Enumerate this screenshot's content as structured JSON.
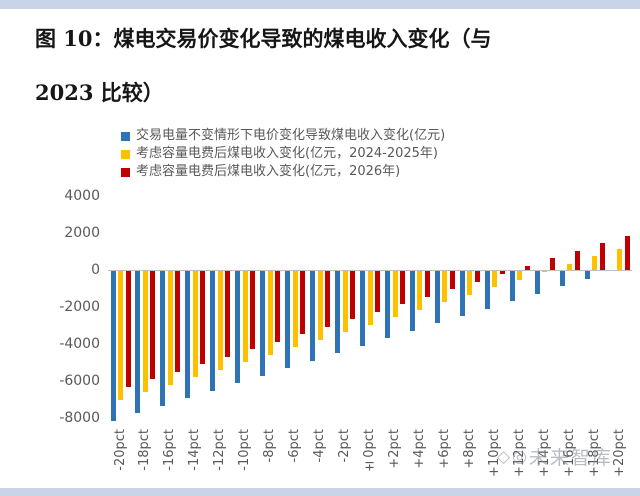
{
  "figure": {
    "title_lines": [
      "图 10：煤电交易价变化导致的煤电收入变化（与",
      "2023 比较）"
    ]
  },
  "legend": {
    "items": [
      {
        "label": "交易电量不变情形下电价变化导致煤电收入变化(亿元)",
        "color": "#2E74B5"
      },
      {
        "label": "考虑容量电费后煤电收入变化(亿元，2024-2025年)",
        "color": "#FFC000"
      },
      {
        "label": "考虑容量电费后煤电收入变化(亿元，2026年)",
        "color": "#C00000"
      }
    ]
  },
  "watermark": {
    "text": "未来智库",
    "icon1": "◇",
    "icon2": "◎"
  },
  "colors": {
    "blue": "#2E74B5",
    "yellow": "#FFC000",
    "red": "#C00000",
    "axis_text": "#595959",
    "zero_line": "#bfbfbf",
    "page_band": "#c9d4e9"
  },
  "chart_data": {
    "type": "bar",
    "title": "煤电交易价变化导致的煤电收入变化（与2023比较）",
    "categories": [
      "-20pct",
      "-18pct",
      "-16pct",
      "-14pct",
      "-12pct",
      "-10pct",
      "-8pct",
      "-6pct",
      "-4pct",
      "-2pct",
      "±0pct",
      "+2pct",
      "+4pct",
      "+6pct",
      "+8pct",
      "+10pct",
      "+12pct",
      "+14pct",
      "+16pct",
      "+18pct",
      "+20pct"
    ],
    "series": [
      {
        "name": "交易电量不变情形下电价变化导致煤电收入变化(亿元)",
        "color": "#2E74B5",
        "values": [
          -8100,
          -7695,
          -7290,
          -6885,
          -6480,
          -6075,
          -5670,
          -5265,
          -4860,
          -4455,
          -4050,
          -3645,
          -3240,
          -2835,
          -2430,
          -2025,
          -1620,
          -1215,
          -810,
          -405,
          0
        ]
      },
      {
        "name": "考虑容量电费后煤电收入变化(亿元，2024-2025年)",
        "color": "#FFC000",
        "values": [
          -6950,
          -6545,
          -6140,
          -5735,
          -5330,
          -4925,
          -4520,
          -4115,
          -3710,
          -3305,
          -2900,
          -2495,
          -2090,
          -1685,
          -1280,
          -875,
          -470,
          -65,
          340,
          745,
          1150
        ]
      },
      {
        "name": "考虑容量电费后煤电收入变化(亿元，2026年)",
        "color": "#C00000",
        "values": [
          -6250,
          -5845,
          -5440,
          -5035,
          -4630,
          -4225,
          -3820,
          -3415,
          -3010,
          -2605,
          -2200,
          -1795,
          -1390,
          -985,
          -580,
          -175,
          230,
          635,
          1040,
          1445,
          1850
        ]
      }
    ],
    "xlabel": "",
    "ylabel": "",
    "ylim": [
      -8000,
      4000
    ],
    "yticks": [
      4000,
      2000,
      0,
      -2000,
      -4000,
      -6000,
      -8000
    ],
    "grid": false,
    "legend_position": "top-left"
  }
}
